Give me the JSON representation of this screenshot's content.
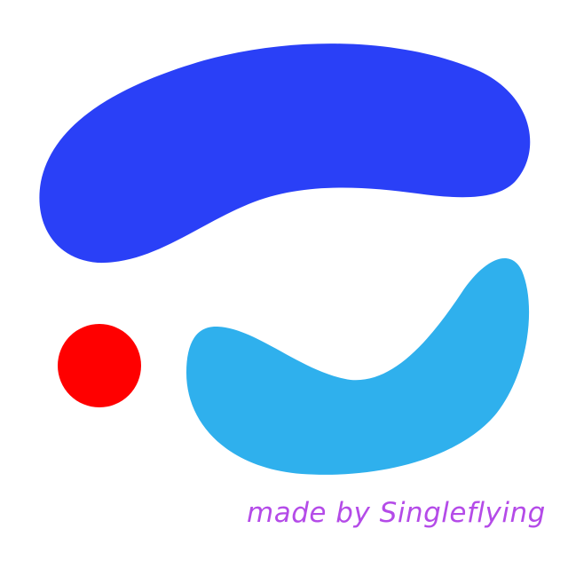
{
  "credit": {
    "text": "made by Singleflying",
    "color": "#b44be8"
  },
  "shapes": {
    "top_blob": {
      "name": "blue-swoosh",
      "color": "#2a40f7"
    },
    "bottom_blob": {
      "name": "light-blue-swoosh",
      "color": "#2fb0ed"
    },
    "dot": {
      "name": "red-dot",
      "color": "#ff0000"
    }
  }
}
